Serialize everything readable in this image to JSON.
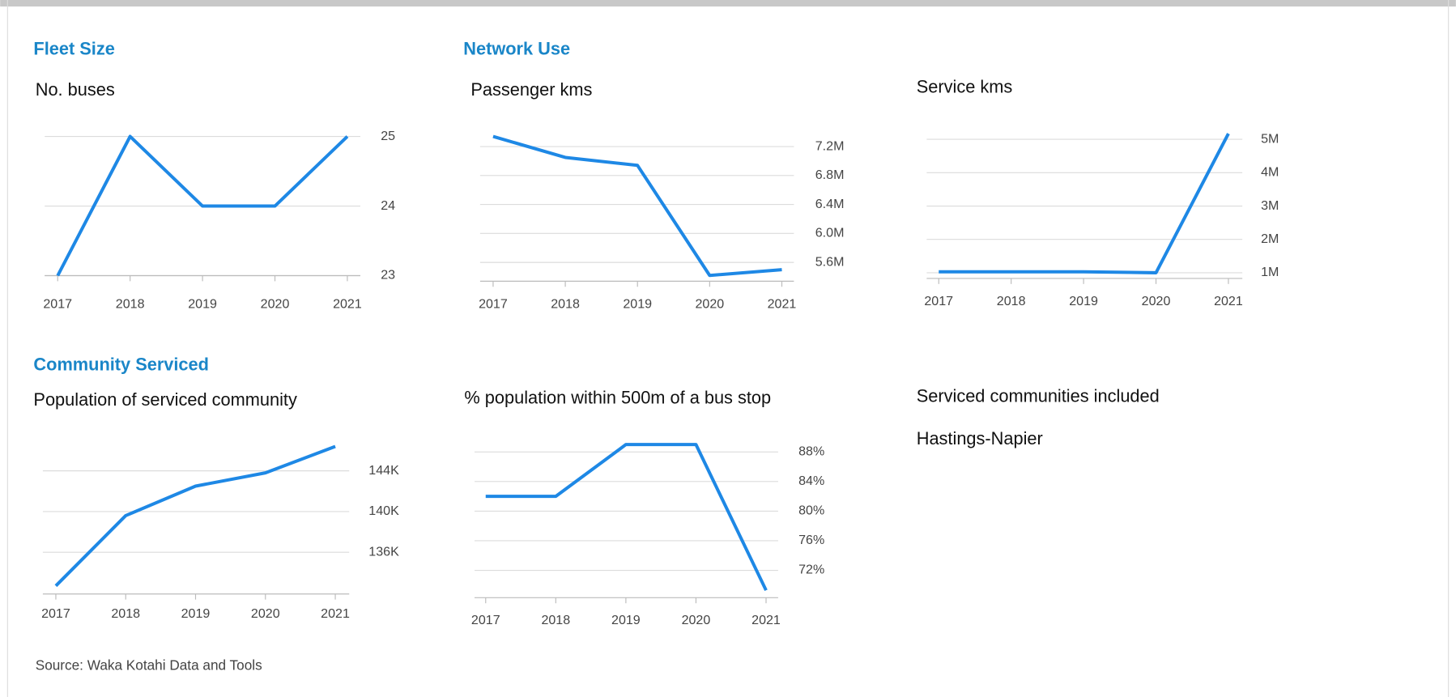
{
  "sections": [
    "Fleet Size",
    "Network Use",
    "Community Serviced"
  ],
  "communities_heading": "Serviced communities included",
  "communities": [
    "Hastings-Napier"
  ],
  "source": "Source: Waka Kotahi Data and Tools",
  "chart_data": [
    {
      "type": "line",
      "title": "No. buses",
      "categories": [
        "2017",
        "2018",
        "2019",
        "2020",
        "2021"
      ],
      "values": [
        23,
        25,
        24,
        24,
        25
      ],
      "color": "#1e88e5",
      "ylim": [
        23,
        25
      ],
      "yticks": [
        23,
        24,
        25
      ],
      "grid": true
    },
    {
      "type": "line",
      "title": "Passenger kms",
      "categories": [
        "2017",
        "2018",
        "2019",
        "2020",
        "2021"
      ],
      "values": [
        7340000,
        7050000,
        6940000,
        5420000,
        5500000
      ],
      "color": "#1e88e5",
      "ylim": [
        5340000,
        7340000
      ],
      "yticks": [
        {
          "value": 5600000,
          "label": "5.6M"
        },
        {
          "value": 6000000,
          "label": "6.0M"
        },
        {
          "value": 6400000,
          "label": "6.4M"
        },
        {
          "value": 6800000,
          "label": "6.8M"
        },
        {
          "value": 7200000,
          "label": "7.2M"
        }
      ],
      "grid": true
    },
    {
      "type": "line",
      "title": "Service kms",
      "categories": [
        "2017",
        "2018",
        "2019",
        "2020",
        "2021"
      ],
      "values": [
        1030000,
        1030000,
        1030000,
        1000000,
        5170000
      ],
      "color": "#1e88e5",
      "ylim": [
        830000,
        5170000
      ],
      "yticks": [
        {
          "value": 1000000,
          "label": "1M"
        },
        {
          "value": 2000000,
          "label": "2M"
        },
        {
          "value": 3000000,
          "label": "3M"
        },
        {
          "value": 4000000,
          "label": "4M"
        },
        {
          "value": 5000000,
          "label": "5M"
        }
      ],
      "grid": true
    },
    {
      "type": "line",
      "title": "Population of serviced community",
      "categories": [
        "2017",
        "2018",
        "2019",
        "2020",
        "2021"
      ],
      "values": [
        132700,
        139600,
        142500,
        143800,
        146400
      ],
      "color": "#1e88e5",
      "ylim": [
        131900,
        146400
      ],
      "yticks": [
        {
          "value": 136000,
          "label": "136K"
        },
        {
          "value": 140000,
          "label": "140K"
        },
        {
          "value": 144000,
          "label": "144K"
        }
      ],
      "grid": true
    },
    {
      "type": "line",
      "title": "% population within 500m of a bus stop",
      "categories": [
        "2017",
        "2018",
        "2019",
        "2020",
        "2021"
      ],
      "values": [
        82,
        82,
        89,
        89,
        69.3
      ],
      "color": "#1e88e5",
      "ylim": [
        68.3,
        89
      ],
      "yticks": [
        {
          "value": 72,
          "label": "72%"
        },
        {
          "value": 76,
          "label": "76%"
        },
        {
          "value": 80,
          "label": "80%"
        },
        {
          "value": 84,
          "label": "84%"
        },
        {
          "value": 88,
          "label": "88%"
        }
      ],
      "grid": true
    }
  ]
}
